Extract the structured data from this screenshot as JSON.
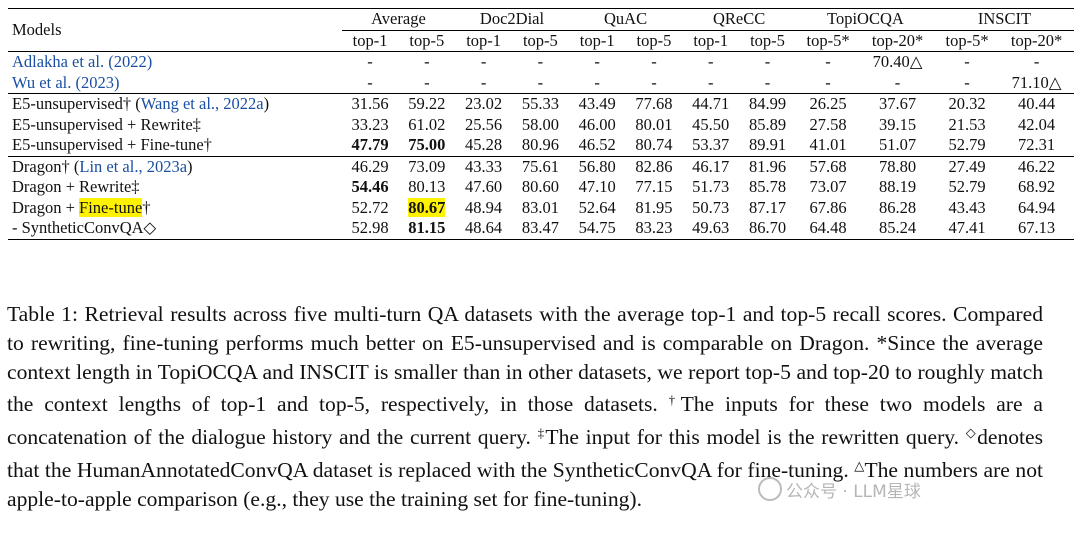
{
  "header": {
    "models_label": "Models",
    "groups": [
      "Average",
      "Doc2Dial",
      "QuAC",
      "QReCC",
      "TopiOCQA",
      "INSCIT"
    ],
    "subheaders": [
      "top-1",
      "top-5",
      "top-1",
      "top-5",
      "top-1",
      "top-5",
      "top-1",
      "top-5",
      "top-5*",
      "top-20*",
      "top-5*",
      "top-20*"
    ]
  },
  "rows": [
    {
      "pre": "",
      "cite": "Adlakha et al. (2022)",
      "post": "",
      "cells": [
        "-",
        "-",
        "-",
        "-",
        "-",
        "-",
        "-",
        "-",
        "-",
        "70.40△",
        "-",
        "-"
      ]
    },
    {
      "pre": "",
      "cite": "Wu et al. (2023)",
      "post": "",
      "cells": [
        "-",
        "-",
        "-",
        "-",
        "-",
        "-",
        "-",
        "-",
        "-",
        "-",
        "-",
        "71.10△"
      ]
    },
    {
      "pre": "E5-unsupervised† (",
      "cite": "Wang et al., 2022a",
      "post": ")",
      "cells": [
        "31.56",
        "59.22",
        "23.02",
        "55.33",
        "43.49",
        "77.68",
        "44.71",
        "84.99",
        "26.25",
        "37.67",
        "20.32",
        "40.44"
      ]
    },
    {
      "pre": "E5-unsupervised + Rewrite‡",
      "cite": "",
      "post": "",
      "cells": [
        "33.23",
        "61.02",
        "25.56",
        "58.00",
        "46.00",
        "80.01",
        "45.50",
        "85.89",
        "27.58",
        "39.15",
        "21.53",
        "42.04"
      ]
    },
    {
      "pre": "E5-unsupervised + Fine-tune†",
      "cite": "",
      "post": "",
      "cells": [
        "47.79",
        "75.00",
        "45.28",
        "80.96",
        "46.52",
        "80.74",
        "53.37",
        "89.91",
        "41.01",
        "51.07",
        "52.79",
        "72.31"
      ]
    },
    {
      "pre": "Dragon† (",
      "cite": "Lin et al., 2023a",
      "post": ")",
      "cells": [
        "46.29",
        "73.09",
        "43.33",
        "75.61",
        "56.80",
        "82.86",
        "46.17",
        "81.96",
        "57.68",
        "78.80",
        "27.49",
        "46.22"
      ]
    },
    {
      "pre": "Dragon + Rewrite‡",
      "cite": "",
      "post": "",
      "cells": [
        "54.46",
        "80.13",
        "47.60",
        "80.60",
        "47.10",
        "77.15",
        "51.73",
        "85.78",
        "73.07",
        "88.19",
        "52.79",
        "68.92"
      ]
    },
    {
      "pre": "Dragon + ",
      "highlight": "Fine-tune",
      "post": "†",
      "cells": [
        "52.72",
        "80.67",
        "48.94",
        "83.01",
        "52.64",
        "81.95",
        "50.73",
        "87.17",
        "67.86",
        "86.28",
        "43.43",
        "64.94"
      ]
    },
    {
      "pre": "- SyntheticConvQA◇",
      "cite": "",
      "post": "",
      "cells": [
        "52.98",
        "81.15",
        "48.64",
        "83.47",
        "54.75",
        "83.23",
        "49.63",
        "86.70",
        "64.48",
        "85.24",
        "47.41",
        "67.13"
      ]
    }
  ],
  "bold_cells": [
    [
      4,
      0
    ],
    [
      4,
      1
    ],
    [
      6,
      0
    ],
    [
      7,
      1
    ],
    [
      8,
      1
    ]
  ],
  "caption": {
    "p1": "Table 1: Retrieval results across five multi-turn QA datasets with the average top-1 and top-5 recall scores. Compared to rewriting, fine-tuning performs much better on E5-unsupervised and is comparable on Dragon. *Since the average context length in TopiOCQA and INSCIT is smaller than in other datasets, we report top-5 and top-20 to roughly match the context lengths of top-1 and top-5, respectively, in those datasets. ",
    "dagger": "†",
    "p2": "The inputs for these two models are a concatenation of the dialogue history and the current query. ",
    "ddagger": "‡",
    "p3": "The input for this model is the rewritten query. ",
    "diamond": "◇",
    "p4": "denotes that the HumanAnnotatedConvQA dataset is replaced with the SyntheticConvQA for fine-tuning. ",
    "triangle": "△",
    "p5": "The numbers are not apple-to-apple comparison (e.g., they use the training set for fine-tuning)."
  },
  "watermark": "公众号 · LLM星球"
}
